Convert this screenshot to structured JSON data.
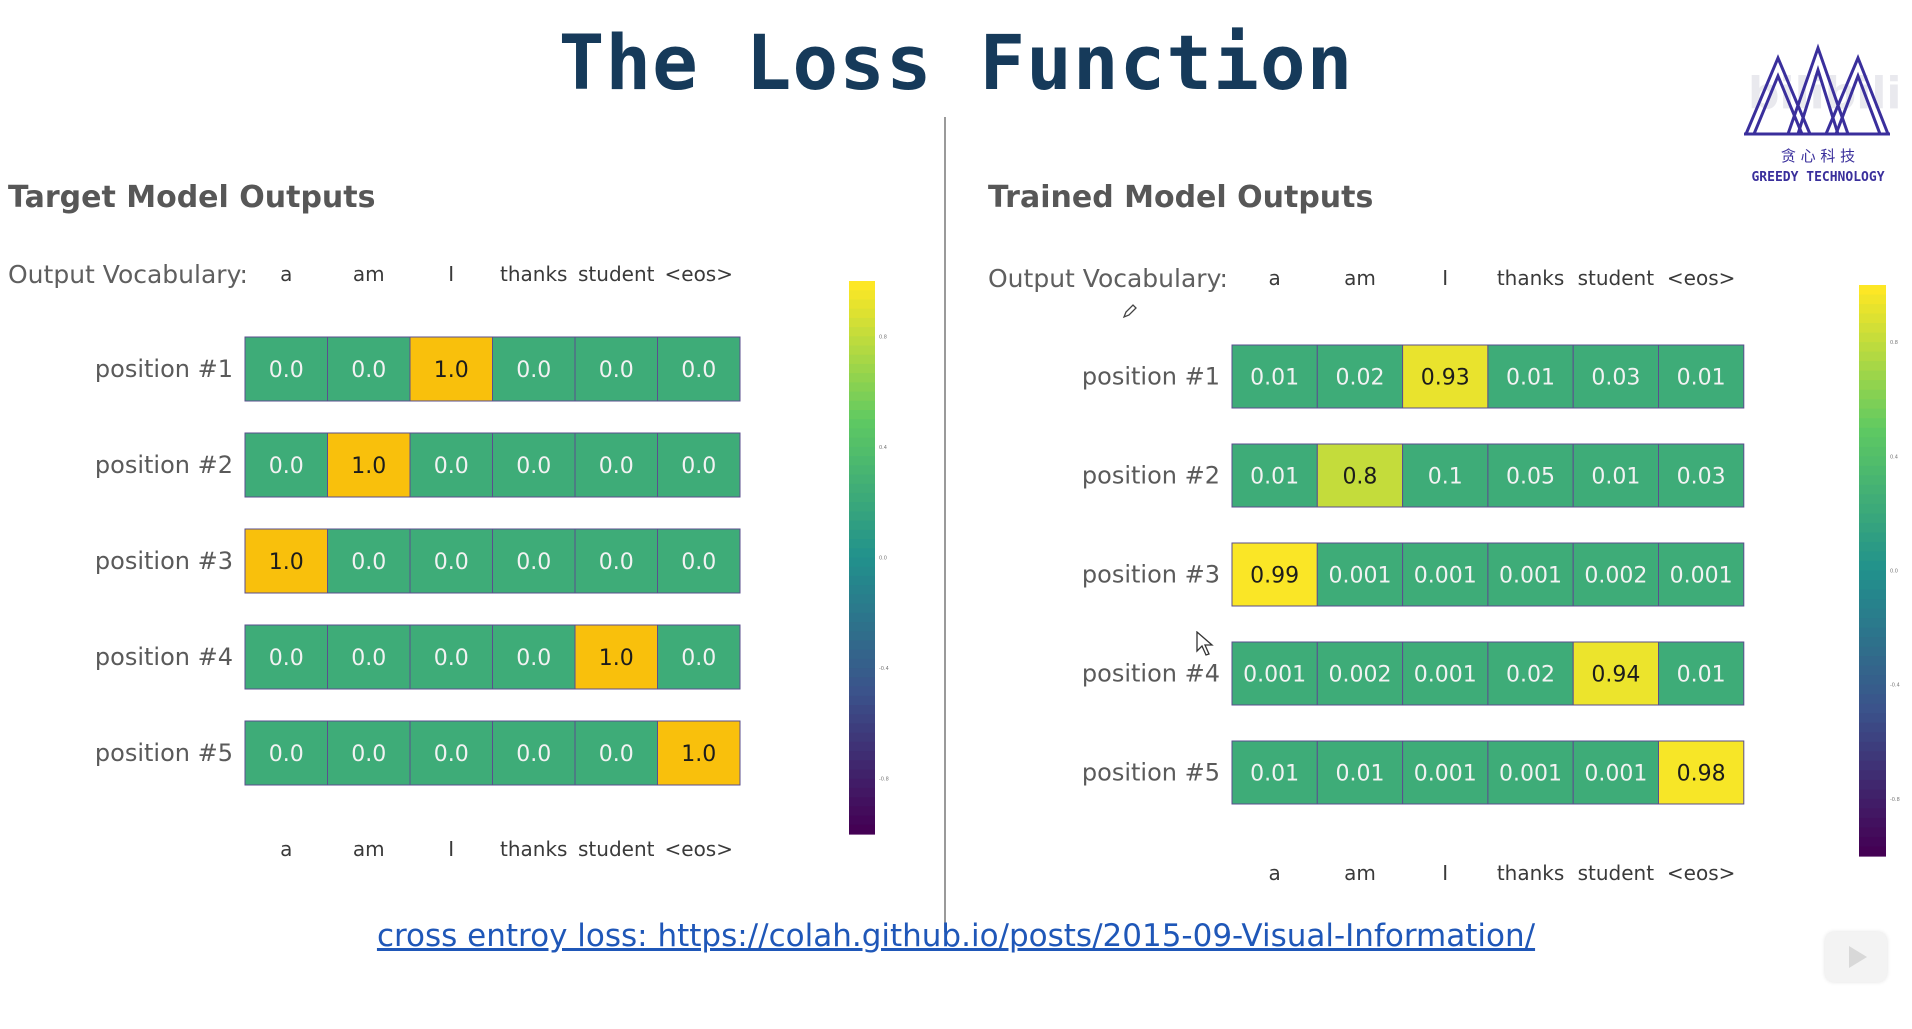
{
  "slide": {
    "title": "The Loss Function",
    "footer_link": "cross entroy loss: https://colah.github.io/posts/2015-09-Visual-Information/"
  },
  "logo": {
    "text_cn": "贪 心 科 技",
    "text_en": "GREEDY TECHNOLOGY",
    "icon": "greedy-technology-logo",
    "watermark": "bilibili"
  },
  "colors": {
    "viridis": [
      "#440154",
      "#3b528b",
      "#21918c",
      "#5ec962",
      "#fde725"
    ],
    "title": "#163a5a",
    "link": "#1f57b8"
  },
  "chart_data": [
    {
      "type": "heatmap",
      "title": "Target Model Outputs",
      "vocab_label": "Output Vocabulary:",
      "x_categories": [
        "a",
        "am",
        "I",
        "thanks",
        "student",
        "<eos>"
      ],
      "y_categories": [
        "position #1",
        "position #2",
        "position #3",
        "position #4",
        "position #5"
      ],
      "values": [
        [
          "0.0",
          "0.0",
          "1.0",
          "0.0",
          "0.0",
          "0.0"
        ],
        [
          "0.0",
          "1.0",
          "0.0",
          "0.0",
          "0.0",
          "0.0"
        ],
        [
          "1.0",
          "0.0",
          "0.0",
          "0.0",
          "0.0",
          "0.0"
        ],
        [
          "0.0",
          "0.0",
          "0.0",
          "0.0",
          "1.0",
          "0.0"
        ],
        [
          "0.0",
          "0.0",
          "0.0",
          "0.0",
          "0.0",
          "1.0"
        ]
      ],
      "colorbar": {
        "colormap": "viridis",
        "ticks": [
          "0.8",
          "0.4",
          "0.0",
          "-0.4",
          "-0.8"
        ],
        "range": [
          -1.0,
          1.0
        ]
      }
    },
    {
      "type": "heatmap",
      "title": "Trained Model Outputs",
      "vocab_label": "Output Vocabulary:",
      "x_categories": [
        "a",
        "am",
        "I",
        "thanks",
        "student",
        "<eos>"
      ],
      "y_categories": [
        "position #1",
        "position #2",
        "position #3",
        "position #4",
        "position #5"
      ],
      "values": [
        [
          "0.01",
          "0.02",
          "0.93",
          "0.01",
          "0.03",
          "0.01"
        ],
        [
          "0.01",
          "0.8",
          "0.1",
          "0.05",
          "0.01",
          "0.03"
        ],
        [
          "0.99",
          "0.001",
          "0.001",
          "0.001",
          "0.002",
          "0.001"
        ],
        [
          "0.001",
          "0.002",
          "0.001",
          "0.02",
          "0.94",
          "0.01"
        ],
        [
          "0.01",
          "0.01",
          "0.001",
          "0.001",
          "0.001",
          "0.98"
        ]
      ],
      "colorbar": {
        "colormap": "viridis",
        "ticks": [
          "0.8",
          "0.4",
          "0.0",
          "-0.4",
          "-0.8"
        ],
        "range": [
          -1.0,
          1.0
        ]
      }
    }
  ]
}
